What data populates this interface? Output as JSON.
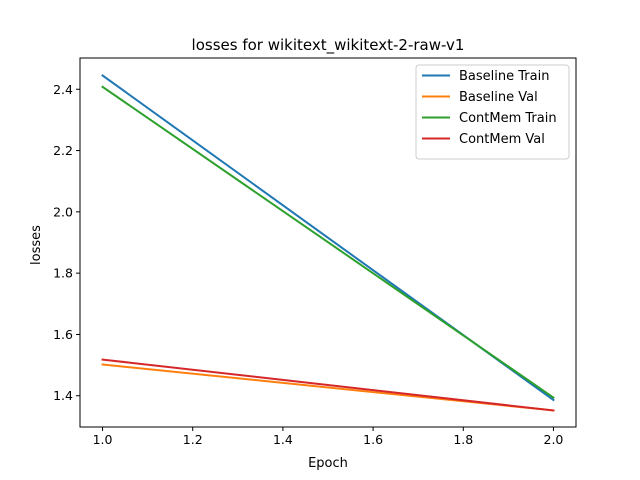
{
  "chart_data": {
    "type": "line",
    "title": "losses for wikitext_wikitext-2-raw-v1",
    "xlabel": "Epoch",
    "ylabel": "losses",
    "x": [
      1.0,
      2.0
    ],
    "xlim": [
      0.95,
      2.05
    ],
    "ylim": [
      1.298,
      2.502
    ],
    "xticks": [
      1.0,
      1.2,
      1.4,
      1.6,
      1.8,
      2.0
    ],
    "xtick_labels": [
      "1.0",
      "1.2",
      "1.4",
      "1.6",
      "1.8",
      "2.0"
    ],
    "yticks": [
      1.4,
      1.6,
      1.8,
      2.0,
      2.2,
      2.4
    ],
    "ytick_labels": [
      "1.4",
      "1.6",
      "1.8",
      "2.0",
      "2.2",
      "2.4"
    ],
    "grid": false,
    "legend_position": "top-right",
    "series": [
      {
        "name": "Baseline Train",
        "color": "#1f77b4",
        "values": [
          2.445,
          1.386
        ]
      },
      {
        "name": "Baseline Val",
        "color": "#ff7f0e",
        "values": [
          1.502,
          1.352
        ]
      },
      {
        "name": "ContMem Train",
        "color": "#2ca02c",
        "values": [
          2.408,
          1.394
        ]
      },
      {
        "name": "ContMem Val",
        "color": "#d62728",
        "values": [
          1.518,
          1.352
        ]
      }
    ]
  }
}
